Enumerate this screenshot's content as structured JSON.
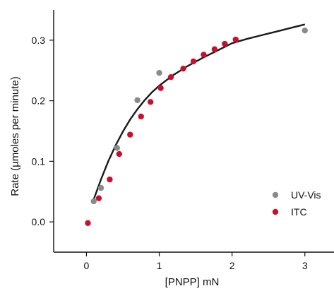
{
  "chart_data": {
    "type": "scatter",
    "title": "",
    "xlabel": "[PNPP] mN",
    "ylabel": "Rate (µmoles per minute)",
    "xlim": [
      -0.45,
      3.4
    ],
    "ylim": [
      -0.05,
      0.35
    ],
    "x_ticks": [
      0,
      1,
      2,
      3
    ],
    "x_tick_labels": [
      "0",
      "1",
      "2",
      "3"
    ],
    "y_ticks": [
      0.0,
      0.1,
      0.2,
      0.3
    ],
    "y_tick_labels": [
      "0.0",
      "0.1",
      "0.2",
      "0.3"
    ],
    "grid": false,
    "legend_position": "bottom-right",
    "series": [
      {
        "name": "UV-Vis",
        "kind": "points",
        "color": "#8a8a8a",
        "x": [
          0.1,
          0.2,
          0.42,
          0.7,
          1.0,
          3.0
        ],
        "y": [
          0.034,
          0.056,
          0.122,
          0.201,
          0.246,
          0.316
        ]
      },
      {
        "name": "ITC",
        "kind": "points",
        "color": "#c8102e",
        "x": [
          0.02,
          0.17,
          0.32,
          0.45,
          0.6,
          0.75,
          0.88,
          1.02,
          1.16,
          1.33,
          1.47,
          1.61,
          1.76,
          1.9,
          2.05
        ],
        "y": [
          -0.002,
          0.039,
          0.07,
          0.112,
          0.144,
          0.174,
          0.198,
          0.221,
          0.239,
          0.253,
          0.265,
          0.276,
          0.285,
          0.294,
          0.301
        ]
      },
      {
        "name": "",
        "kind": "line",
        "color": "#1a1a1a",
        "x": [
          0.1,
          0.2,
          0.3,
          0.4,
          0.5,
          0.6,
          0.7,
          0.8,
          0.9,
          1.0,
          1.2,
          1.4,
          1.6,
          1.8,
          2.0,
          2.2,
          2.4,
          2.6,
          2.8,
          3.0
        ],
        "y": [
          0.037,
          0.07,
          0.1,
          0.126,
          0.149,
          0.169,
          0.186,
          0.201,
          0.214,
          0.225,
          0.243,
          0.258,
          0.271,
          0.283,
          0.295,
          0.302,
          0.308,
          0.314,
          0.32,
          0.326
        ]
      }
    ]
  }
}
